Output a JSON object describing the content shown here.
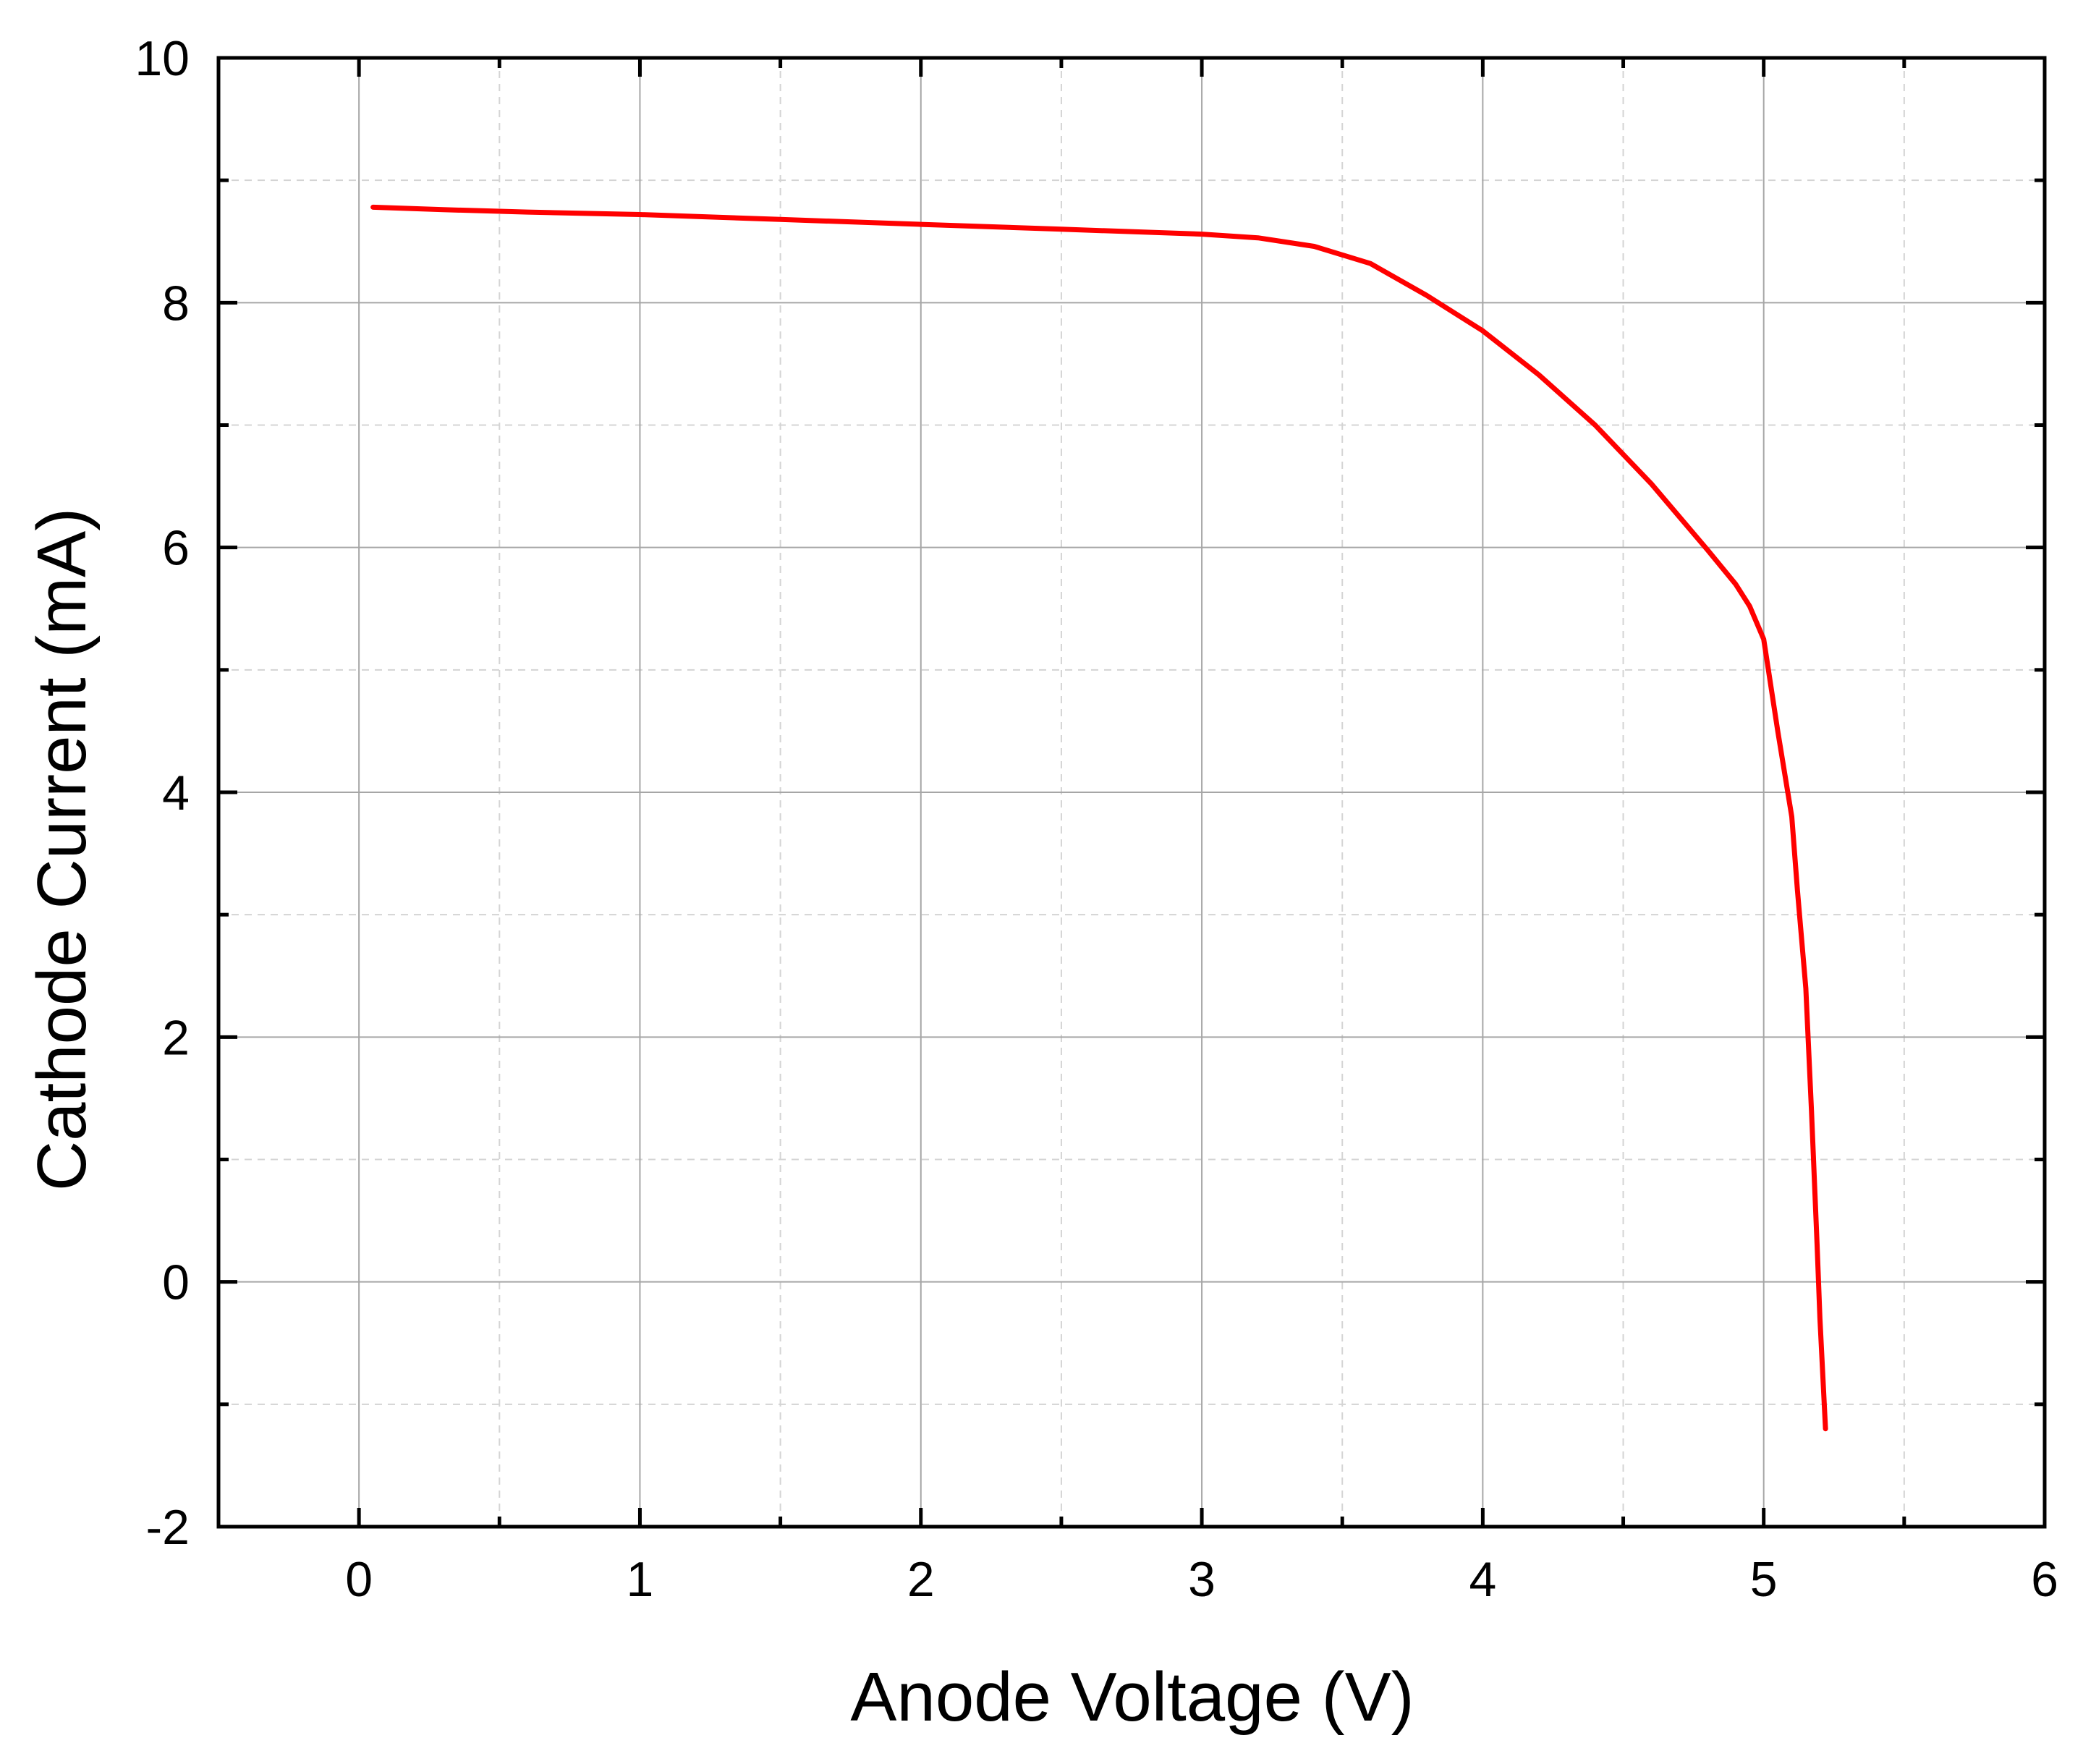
{
  "chart_data": {
    "type": "line",
    "title": "",
    "xlabel": "Anode Voltage (V)",
    "ylabel": "Cathode Current (mA)",
    "xlim": [
      -0.5,
      6
    ],
    "ylim": [
      -2,
      10
    ],
    "x_major_ticks": [
      0,
      1,
      2,
      3,
      4,
      5,
      6
    ],
    "x_minor_ticks": [
      0.5,
      1.5,
      2.5,
      3.5,
      4.5,
      5.5
    ],
    "y_major_ticks": [
      -2,
      0,
      2,
      4,
      6,
      8,
      10
    ],
    "y_minor_ticks": [
      -1,
      1,
      3,
      5,
      7,
      9
    ],
    "x_tick_labels": [
      "0",
      "1",
      "2",
      "3",
      "4",
      "5",
      "6"
    ],
    "y_tick_labels": [
      "-2",
      "0",
      "2",
      "4",
      "6",
      "8",
      "10"
    ],
    "grid": true,
    "legend": "none",
    "series_color": "#ff0000",
    "series": [
      {
        "x": [
          0.05,
          0.3,
          0.6,
          1.0,
          1.5,
          2.0,
          2.5,
          3.0,
          3.2,
          3.4,
          3.6,
          3.8,
          4.0,
          4.2,
          4.4,
          4.6,
          4.8,
          4.9,
          4.95,
          5.0,
          5.05,
          5.1,
          5.12,
          5.15,
          5.17,
          5.19,
          5.2,
          5.22
        ],
        "y": [
          8.78,
          8.76,
          8.74,
          8.72,
          8.68,
          8.64,
          8.6,
          8.56,
          8.53,
          8.46,
          8.32,
          8.06,
          7.77,
          7.41,
          7.0,
          6.52,
          5.98,
          5.7,
          5.52,
          5.25,
          4.5,
          3.8,
          3.2,
          2.4,
          1.4,
          0.3,
          -0.3,
          -1.2
        ]
      }
    ]
  }
}
